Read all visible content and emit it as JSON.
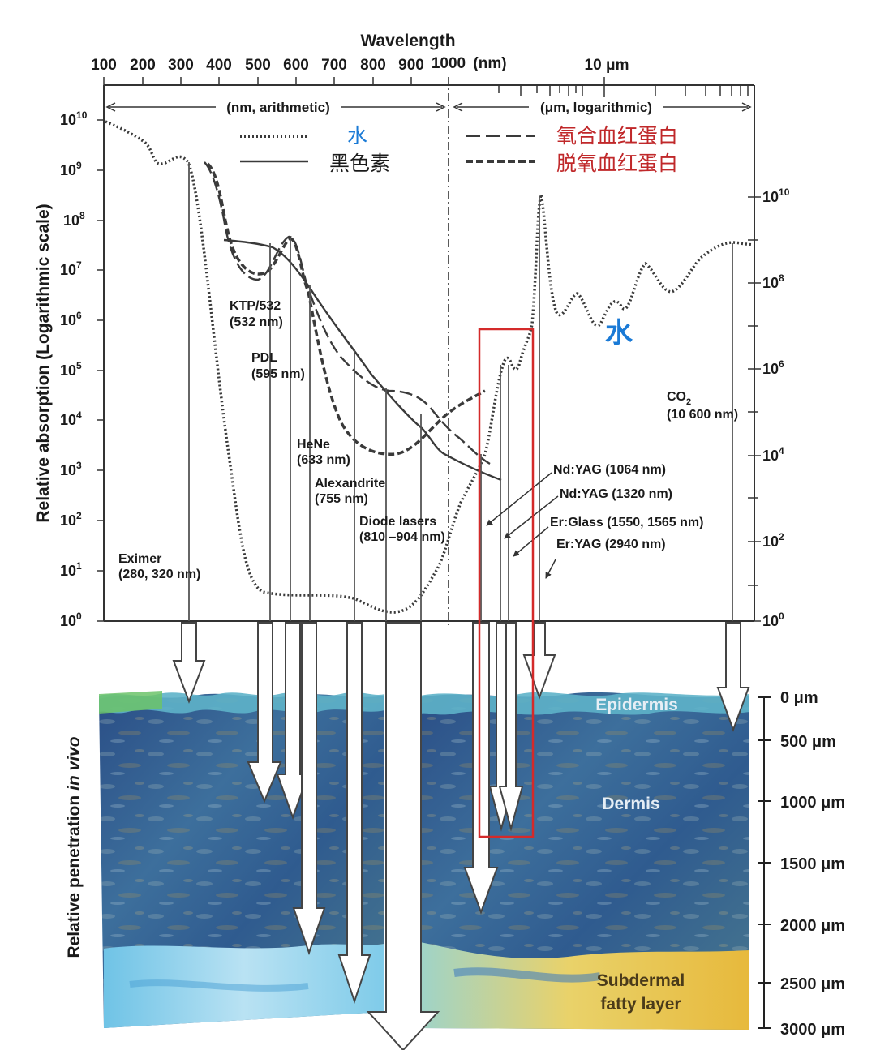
{
  "top_axis": {
    "title": "Wavelength",
    "nm_ticks": [
      "100",
      "200",
      "300",
      "400",
      "500",
      "600",
      "700",
      "800",
      "900",
      "1000"
    ],
    "nm_unit": "(nm)",
    "um_tick": "10 μm",
    "left_range_label": "(nm, arithmetic)",
    "right_range_label": "(μm, logarithmic)"
  },
  "left_axis": {
    "title": "Relative absorption (Logarithmic scale)",
    "ticks": [
      "10",
      "10",
      "10",
      "10",
      "10",
      "10",
      "10",
      "10",
      "10",
      "10",
      "10"
    ],
    "exponents": [
      "0",
      "1",
      "2",
      "3",
      "4",
      "5",
      "6",
      "7",
      "8",
      "9",
      "10"
    ]
  },
  "right_axis": {
    "ticks": [
      "10",
      "10",
      "10",
      "10",
      "10",
      "10"
    ],
    "exponents": [
      "0",
      "2",
      "4",
      "6",
      "8",
      "10"
    ]
  },
  "legend": {
    "water": "水",
    "melanin": "黑色素",
    "oxyhemoglobin": "氧合血红蛋白",
    "deoxyhemoglobin": "脱氧血红蛋白",
    "water_curve_label": "水",
    "colors": {
      "water": "#1a7ad6",
      "hemoglobin": "#c0282a",
      "curves": "#3a3a3a"
    }
  },
  "lasers": {
    "eximer_name": "Eximer",
    "eximer_wl": "(280, 320 nm)",
    "ktp_name": "KTP/532",
    "ktp_wl": "(532 nm)",
    "pdl_name": "PDL",
    "pdl_wl": "(595 nm)",
    "hene_name": "HeNe",
    "hene_wl": "(633 nm)",
    "alex_name": "Alexandrite",
    "alex_wl": "(755 nm)",
    "diode_name": "Diode lasers",
    "diode_wl": "(810 –904 nm)",
    "ndyag1064": "Nd:YAG (1064 nm)",
    "ndyag1320": "Nd:YAG (1320 nm)",
    "erglass": "Er:Glass (1550, 1565 nm)",
    "eryag": "Er:YAG (2940 nm)",
    "co2_name": "CO",
    "co2_sub": "2",
    "co2_wl": "(10 600 nm)"
  },
  "penetration": {
    "title_plain": "Relative penetration ",
    "title_italic": "in vivo",
    "epidermis": "Epidermis",
    "dermis": "Dermis",
    "fat_line1": "Subdermal",
    "fat_line2": "fatty layer",
    "depths": [
      "0 μm",
      "500 μm",
      "1000 μm",
      "1500 μm",
      "2000 μm",
      "2500 μm",
      "3000 μm"
    ]
  }
}
